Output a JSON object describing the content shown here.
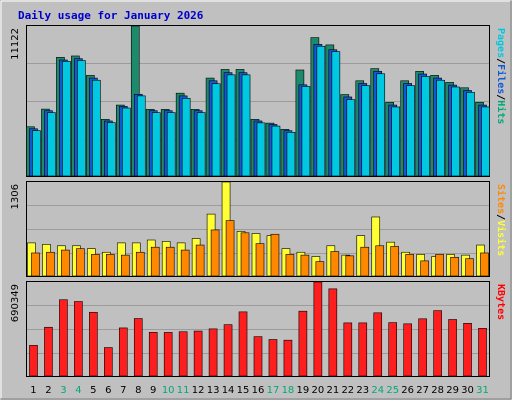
{
  "chart_data": {
    "title": "Daily usage for January 2026",
    "days": [
      "1",
      "2",
      "3",
      "4",
      "5",
      "6",
      "7",
      "8",
      "9",
      "10",
      "11",
      "12",
      "13",
      "14",
      "15",
      "16",
      "17",
      "18",
      "19",
      "20",
      "21",
      "22",
      "23",
      "24",
      "25",
      "26",
      "27",
      "28",
      "29",
      "30",
      "31"
    ],
    "weekend_days": [
      "3",
      "4",
      "10",
      "11",
      "17",
      "18",
      "24",
      "25",
      "31"
    ],
    "panels": [
      {
        "type": "bar",
        "max_label": "11122",
        "ylim": [
          0,
          11122
        ],
        "legend": [
          "Pages",
          "/",
          "Files",
          "/",
          "Hits"
        ],
        "legend_colors": [
          "#00c8e0",
          "#000000",
          "#1458d8",
          "#000000",
          "#00a878"
        ],
        "series": [
          {
            "name": "Hits",
            "color": "#1e8a6c",
            "values": [
              3650,
              4960,
              8800,
              8900,
              7460,
              4200,
              5260,
              11122,
              4940,
              4940,
              6140,
              4940,
              7260,
              7900,
              7900,
              4200,
              3920,
              3460,
              7860,
              10260,
              9720,
              6040,
              7060,
              7960,
              5460,
              7060,
              7760,
              7460,
              6940,
              6540,
              5460
            ]
          },
          {
            "name": "Files",
            "color": "#1458d8",
            "values": [
              3500,
              4840,
              8600,
              8700,
              7260,
              4080,
              5160,
              6060,
              4840,
              4840,
              5940,
              4840,
              7060,
              7660,
              7660,
              4080,
              3820,
              3360,
              6760,
              9760,
              9360,
              5860,
              6860,
              7760,
              5260,
              6860,
              7560,
              7260,
              6740,
              6340,
              5260
            ]
          },
          {
            "name": "Pages",
            "color": "#00c8e0",
            "values": [
              3360,
              4700,
              8500,
              8560,
              7100,
              3960,
              5040,
              5940,
              4700,
              4700,
              5760,
              4700,
              6840,
              7500,
              7500,
              3940,
              3700,
              3240,
              6640,
              9620,
              9220,
              5660,
              6700,
              7580,
              5120,
              6700,
              7380,
              7100,
              6600,
              6200,
              5120
            ]
          }
        ]
      },
      {
        "type": "bar",
        "max_label": "1306",
        "ylim": [
          0,
          1306
        ],
        "legend": [
          "Sites",
          "/",
          "Visits"
        ],
        "legend_colors": [
          "#ff8800",
          "#000000",
          "#ffff33"
        ],
        "series": [
          {
            "name": "Visits",
            "color": "#ffff33",
            "values": [
              460,
              440,
              420,
              420,
              380,
              330,
              460,
              460,
              500,
              480,
              460,
              520,
              860,
              1306,
              620,
              590,
              560,
              380,
              330,
              270,
              420,
              290,
              560,
              820,
              470,
              330,
              300,
              270,
              300,
              290,
              430
            ]
          },
          {
            "name": "Sites",
            "color": "#ff8800",
            "values": [
              320,
              330,
              360,
              380,
              300,
              300,
              290,
              330,
              400,
              400,
              360,
              430,
              640,
              770,
              600,
              450,
              580,
              300,
              290,
              200,
              340,
              280,
              400,
              420,
              410,
              300,
              210,
              300,
              260,
              240,
              320
            ]
          }
        ]
      },
      {
        "type": "bar",
        "max_label": "690349",
        "ylim": [
          0,
          690349
        ],
        "legend": [
          "KBytes"
        ],
        "legend_colors": [
          "#ff0000"
        ],
        "series": [
          {
            "name": "KBytes",
            "color": "#ff1e1e",
            "values": [
              225000,
              358000,
              560000,
              547000,
              468000,
              209000,
              353000,
              422000,
              321000,
              320000,
              325000,
              330000,
              346000,
              377000,
              471000,
              289000,
              268000,
              263000,
              476000,
              690349,
              640000,
              390000,
              390000,
              464000,
              392000,
              383000,
              420000,
              480000,
              415000,
              387000,
              350000
            ]
          }
        ]
      }
    ]
  },
  "colors": {
    "background": "#c0c0c0",
    "plot_background": "#c0c0c0",
    "grid": "#9c9c9c",
    "frame": "#000000",
    "weekday_label": "#000000",
    "weekend_label": "#00a878"
  }
}
